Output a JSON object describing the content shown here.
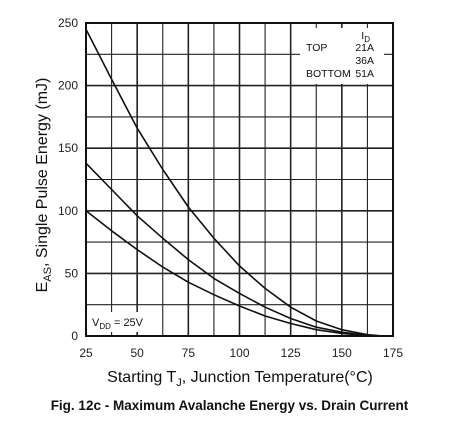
{
  "caption": "Fig. 12c - Maximum Avalanche Energy vs. Drain Current",
  "chart_data": {
    "type": "line",
    "xlabel": {
      "pre": "Starting T",
      "sub": "J",
      "post": ", Junction Temperature(°C)"
    },
    "ylabel": {
      "pre": "E",
      "sub": "AS",
      "post": ", Single Pulse Energy (mJ)"
    },
    "xlim": [
      25,
      175
    ],
    "ylim": [
      0,
      250
    ],
    "xticks": [
      25,
      50,
      75,
      100,
      125,
      150,
      175
    ],
    "yticks": [
      0,
      50,
      100,
      150,
      200,
      250
    ],
    "grid": true,
    "x_minor_step": 12.5,
    "y_minor_step": 25,
    "legend": {
      "header": "I",
      "header_sub": "D",
      "rows": [
        {
          "position": "TOP",
          "value": "21A"
        },
        {
          "position": "",
          "value": "36A"
        },
        {
          "position": "BOTTOM",
          "value": "51A"
        }
      ]
    },
    "annotation": {
      "pre": "V",
      "sub": "DD",
      "post": " = 25V"
    },
    "series": [
      {
        "x": [
          25,
          37.5,
          50,
          62.5,
          75,
          87.5,
          100,
          112.5,
          125,
          137.5,
          150,
          162.5,
          170,
          175
        ],
        "values": [
          245,
          205,
          166,
          133,
          103,
          78,
          56,
          38,
          23,
          12,
          5,
          1,
          0,
          0
        ]
      },
      {
        "x": [
          25,
          37.5,
          50,
          62.5,
          75,
          87.5,
          100,
          112.5,
          125,
          137.5,
          150,
          162.5,
          170,
          175
        ],
        "values": [
          138,
          117,
          96,
          78,
          61,
          46,
          34,
          23,
          14,
          7,
          3,
          0.5,
          0,
          0
        ]
      },
      {
        "x": [
          25,
          37.5,
          50,
          62.5,
          75,
          87.5,
          100,
          112.5,
          125,
          137.5,
          150,
          162.5,
          170,
          175
        ],
        "values": [
          100,
          84,
          69,
          55,
          43,
          33,
          24,
          16,
          10,
          5,
          2,
          0.3,
          0,
          0
        ]
      }
    ]
  }
}
